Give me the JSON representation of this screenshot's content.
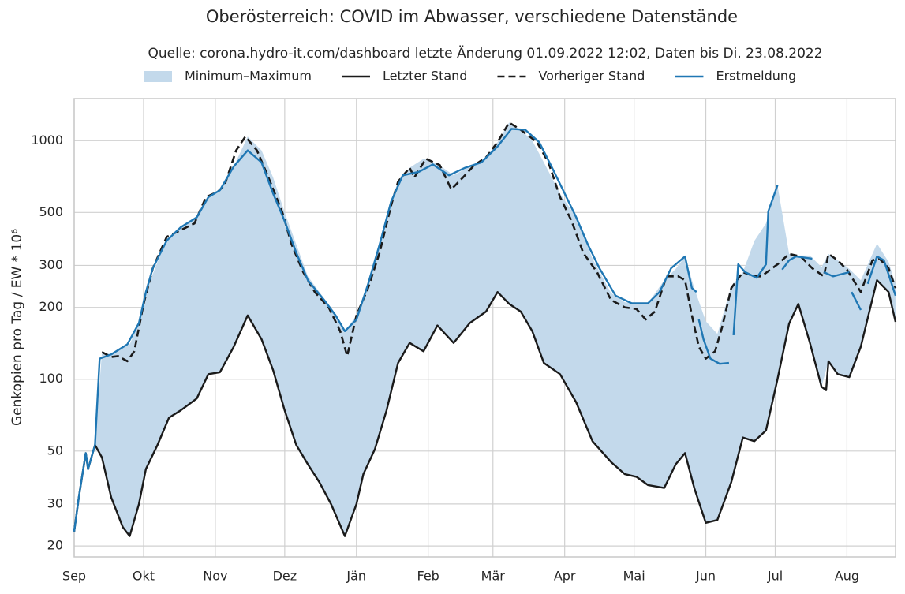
{
  "chart_data": {
    "type": "line",
    "yscale": "log",
    "grid": true,
    "legend": "top",
    "title": "Oberösterreich: COVID im Abwasser, verschiedene Datenstände",
    "subtitle": "Quelle: corona.hydro-it.com/dashboard letzte Änderung 01.09.2022 12:02, Daten bis Di. 23.08.2022",
    "ylabel": "Genkopien pro Tag / EW * 10⁶",
    "xlim": [
      0,
      355
    ],
    "ylim": [
      18,
      1500
    ],
    "xticks": [
      {
        "value": 0,
        "label": "Sep"
      },
      {
        "value": 30,
        "label": "Okt"
      },
      {
        "value": 61,
        "label": "Nov"
      },
      {
        "value": 91,
        "label": "Dez"
      },
      {
        "value": 122,
        "label": "Jän"
      },
      {
        "value": 153,
        "label": "Feb"
      },
      {
        "value": 181,
        "label": "Mär"
      },
      {
        "value": 212,
        "label": "Apr"
      },
      {
        "value": 242,
        "label": "Mai"
      },
      {
        "value": 273,
        "label": "Jun"
      },
      {
        "value": 303,
        "label": "Jul"
      },
      {
        "value": 334,
        "label": "Aug"
      }
    ],
    "yticks": [
      20,
      30,
      50,
      100,
      200,
      300,
      500,
      1000
    ],
    "band": {
      "name": "Minimum–Maximum",
      "color": "#c3d9eb",
      "x": [
        0,
        2,
        5,
        6,
        9,
        12,
        16,
        21,
        24,
        28,
        31,
        36,
        41,
        46,
        53,
        58,
        63,
        69,
        75,
        81,
        86,
        91,
        96,
        101,
        106,
        111,
        117,
        122,
        125,
        130,
        135,
        140,
        145,
        151,
        157,
        164,
        171,
        178,
        183,
        188,
        193,
        198,
        203,
        210,
        217,
        224,
        232,
        238,
        243,
        248,
        255,
        260,
        264,
        268,
        273,
        278,
        284,
        289,
        294,
        299,
        304,
        309,
        313,
        318,
        323,
        326,
        330,
        335,
        340,
        347,
        352,
        355
      ],
      "lower": [
        23,
        32,
        49,
        42,
        53,
        47,
        32,
        24,
        22,
        30,
        42,
        53,
        69,
        74,
        83,
        105,
        107,
        137,
        185,
        147,
        109,
        74,
        53,
        44,
        37,
        30,
        22,
        30,
        40,
        51,
        74,
        117,
        142,
        131,
        168,
        142,
        172,
        192,
        232,
        207,
        192,
        159,
        117,
        105,
        80,
        55,
        45,
        40,
        39,
        36,
        35,
        44,
        49,
        35,
        25,
        25.7,
        37,
        57,
        55,
        61,
        100,
        171,
        207,
        142,
        93,
        119,
        105,
        102,
        137,
        260,
        232,
        174
      ],
      "upper": [
        23,
        32,
        49,
        42,
        53,
        130,
        127,
        135,
        140,
        172,
        232,
        310,
        395,
        433,
        477,
        580,
        620,
        780,
        1040,
        910,
        700,
        500,
        367,
        270,
        232,
        200,
        159,
        185,
        220,
        320,
        470,
        680,
        770,
        840,
        800,
        715,
        780,
        850,
        985,
        1190,
        1110,
        1000,
        810,
        600,
        477,
        320,
        230,
        210,
        208,
        208,
        260,
        290,
        327,
        241,
        175,
        155,
        245,
        281,
        380,
        450,
        650,
        335,
        330,
        330,
        295,
        335,
        315,
        290,
        260,
        370,
        310,
        250
      ]
    },
    "series": [
      {
        "name": "Letzter Stand",
        "color": "#1a1a1a",
        "style": "solid",
        "x": [
          0,
          2,
          5,
          6,
          9,
          12,
          16,
          21,
          24,
          28,
          31,
          36,
          41,
          46,
          53,
          58,
          63,
          69,
          75,
          81,
          86,
          91,
          96,
          101,
          106,
          111,
          117,
          122,
          125,
          130,
          135,
          140,
          145,
          151,
          157,
          164,
          171,
          178,
          183,
          188,
          193,
          198,
          203,
          210,
          217,
          224,
          232,
          238,
          243,
          248,
          255,
          260,
          264,
          268,
          273,
          278,
          284,
          289,
          294,
          299,
          304,
          309,
          313,
          318,
          323,
          325,
          326,
          330,
          335,
          340,
          347,
          352,
          355
        ],
        "values": [
          23,
          32,
          49,
          42,
          53,
          47,
          32,
          24,
          22,
          30,
          42,
          53,
          69,
          74,
          83,
          105,
          107,
          137,
          185,
          147,
          109,
          74,
          53,
          44,
          37,
          30,
          22,
          30,
          40,
          51,
          74,
          117,
          142,
          131,
          168,
          142,
          172,
          192,
          232,
          207,
          192,
          159,
          117,
          105,
          80,
          55,
          45,
          40,
          39,
          36,
          35,
          44,
          49,
          35,
          25,
          25.7,
          37,
          57,
          55,
          61,
          100,
          171,
          207,
          142,
          93,
          90,
          119,
          105,
          102,
          137,
          260,
          232,
          174
        ]
      },
      {
        "name": "Vorheriger Stand",
        "color": "#1a1a1a",
        "style": "dashed",
        "x": [
          12,
          16,
          19,
          23,
          26,
          30,
          34,
          40,
          45,
          52,
          57,
          62,
          65,
          70,
          74,
          79,
          84,
          90,
          94,
          99,
          104,
          110,
          115,
          118,
          122,
          127,
          132,
          137,
          140,
          145,
          147,
          152,
          158,
          163,
          168,
          173,
          178,
          183,
          188,
          193,
          200,
          205,
          210,
          215,
          220,
          226,
          232,
          238,
          243,
          247,
          251,
          256,
          261,
          264,
          267,
          270,
          273,
          277,
          280,
          284,
          289,
          294,
          297,
          304,
          309,
          314,
          319,
          324,
          326,
          330,
          334,
          340,
          345,
          348,
          352,
          355
        ],
        "values": [
          130,
          124,
          125,
          119,
          131,
          207,
          292,
          395,
          417,
          450,
          580,
          610,
          650,
          910,
          1040,
          910,
          700,
          500,
          367,
          281,
          232,
          200,
          159,
          125,
          185,
          241,
          339,
          535,
          673,
          770,
          700,
          840,
          790,
          625,
          700,
          790,
          850,
          985,
          1190,
          1110,
          985,
          810,
          580,
          460,
          339,
          281,
          215,
          200,
          197,
          178,
          192,
          270,
          270,
          260,
          185,
          137,
          122,
          131,
          165,
          241,
          281,
          270,
          270,
          303,
          335,
          327,
          292,
          270,
          335,
          315,
          288,
          232,
          315,
          320,
          292,
          241
        ]
      },
      {
        "name": "Erstmeldung",
        "color": "#1f77b4",
        "style": "solid",
        "x": [
          0,
          2,
          5,
          6,
          9,
          11,
          16,
          23,
          28,
          31,
          34,
          40,
          46,
          53,
          58,
          63,
          69,
          75,
          81,
          86,
          91,
          96,
          101,
          108,
          113,
          117,
          122,
          127,
          132,
          137,
          142,
          149,
          155,
          162,
          169,
          176,
          183,
          189,
          195,
          201,
          207,
          212,
          217,
          222,
          227,
          234,
          241,
          248,
          253,
          258,
          264,
          267,
          269,
          269.5,
          270,
          272,
          275,
          279,
          283,
          284,
          285,
          287,
          290,
          295,
          299,
          300,
          304,
          305,
          306,
          309,
          312,
          319,
          322,
          324,
          328,
          335,
          335.5,
          336,
          340,
          341,
          343,
          347,
          350,
          355
        ],
        "values": [
          23,
          32,
          49,
          42,
          53,
          122,
          127,
          140,
          172,
          232,
          292,
          381,
          433,
          477,
          580,
          620,
          780,
          910,
          810,
          600,
          460,
          339,
          260,
          215,
          185,
          159,
          178,
          250,
          367,
          555,
          715,
          740,
          795,
          715,
          770,
          810,
          945,
          1120,
          1110,
          985,
          755,
          600,
          477,
          367,
          292,
          224,
          208,
          208,
          232,
          292,
          327,
          241,
          232,
          null,
          178,
          147,
          122,
          116,
          117,
          null,
          153,
          303,
          281,
          266,
          303,
          505,
          650,
          null,
          288,
          315,
          327,
          320,
          null,
          281,
          270,
          281,
          null,
          232,
          195,
          null,
          251,
          327,
          315,
          224
        ]
      }
    ]
  }
}
